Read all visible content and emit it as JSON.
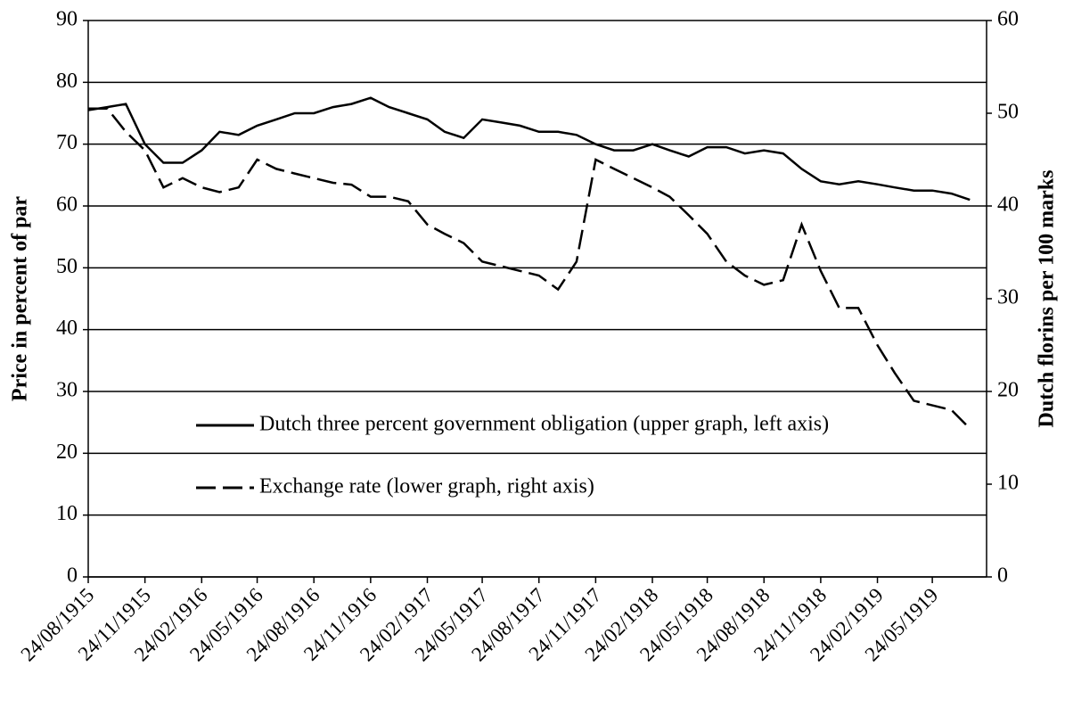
{
  "chart_data": {
    "type": "line",
    "y_label": "Price in percent of par",
    "y2_label": "Dutch florins per 100 marks",
    "x": [
      "24/08/1915",
      "24/09/1915",
      "24/10/1915",
      "24/11/1915",
      "24/12/1915",
      "24/01/1916",
      "24/02/1916",
      "24/03/1916",
      "24/04/1916",
      "24/05/1916",
      "24/06/1916",
      "24/07/1916",
      "24/08/1916",
      "24/09/1916",
      "24/10/1916",
      "24/11/1916",
      "24/12/1916",
      "24/01/1917",
      "24/02/1917",
      "24/03/1917",
      "24/04/1917",
      "24/05/1917",
      "24/06/1917",
      "24/07/1917",
      "24/08/1917",
      "24/09/1917",
      "24/10/1917",
      "24/11/1917",
      "24/12/1917",
      "24/01/1918",
      "24/02/1918",
      "24/03/1918",
      "24/04/1918",
      "24/05/1918",
      "24/06/1918",
      "24/07/1918",
      "24/08/1918",
      "24/09/1918",
      "24/10/1918",
      "24/11/1918",
      "24/12/1918",
      "24/01/1919",
      "24/02/1919",
      "24/03/1919",
      "24/04/1919",
      "24/05/1919",
      "24/06/1919",
      "24/07/1919"
    ],
    "series": [
      {
        "name": "Dutch three percent government obligation (upper graph, left axis)",
        "color": "#000000",
        "dash": "solid",
        "axis": "y",
        "values": [
          75.5,
          76,
          76.5,
          70,
          67,
          67,
          69,
          72,
          71.5,
          73,
          74,
          75,
          75,
          76,
          76.5,
          77.5,
          76,
          75,
          74,
          72,
          71,
          74,
          73.5,
          73,
          72,
          72,
          71.5,
          70,
          69,
          69,
          70,
          69,
          68,
          69.5,
          69.5,
          68.5,
          69,
          68.5,
          66,
          64,
          63.5,
          64,
          63.5,
          63,
          62.5,
          62.5,
          62,
          61
        ]
      },
      {
        "name": "Exchange rate (lower graph, right axis)",
        "color": "#000000",
        "dash": "dashed",
        "axis": "y2",
        "values": [
          50.5,
          50.5,
          48,
          46,
          42,
          43,
          42,
          41.5,
          42,
          45,
          44,
          43.5,
          43,
          42.5,
          42.3,
          41,
          41,
          40.5,
          38,
          37,
          36,
          34,
          33.5,
          33,
          32.5,
          31,
          34,
          45,
          44,
          43,
          42,
          41,
          39,
          37,
          34,
          32.5,
          31.5,
          32,
          38,
          33,
          29,
          29,
          25,
          22,
          19,
          18.5,
          18,
          16
        ]
      }
    ],
    "xlim": [
      "24/08/1915",
      "20/08/1919"
    ],
    "xticks": [
      "24/08/1915",
      "24/11/1915",
      "24/02/1916",
      "24/05/1916",
      "24/08/1916",
      "24/11/1916",
      "24/02/1917",
      "24/05/1917",
      "24/08/1917",
      "24/11/1917",
      "24/02/1918",
      "24/05/1918",
      "24/08/1918",
      "24/11/1918",
      "24/02/1919",
      "24/05/1919"
    ],
    "ylim": [
      0,
      90
    ],
    "yticks": [
      0,
      10,
      20,
      30,
      40,
      50,
      60,
      70,
      80,
      90
    ],
    "y2lim": [
      0,
      60
    ],
    "y2ticks": [
      0,
      10,
      20,
      30,
      40,
      50,
      60
    ],
    "grid": true,
    "legend": "inside"
  }
}
